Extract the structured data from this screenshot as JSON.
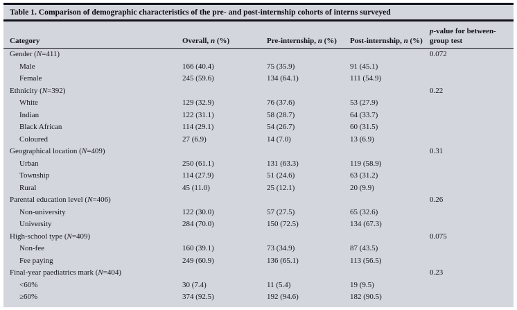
{
  "table": {
    "title": "Table 1. Comparison of demographic characteristics of the pre- and post-internship cohorts of interns surveyed",
    "columns": [
      "Category",
      "Overall, n (%)",
      "Pre-internship, n (%)",
      "Post-internship, n (%)",
      "p-value for between-group test"
    ],
    "background_color": "#d3d6dd",
    "rule_color": "#12121a",
    "rows": [
      {
        "label": "Gender (N=411)",
        "indent": false,
        "overall": "",
        "pre": "",
        "post": "",
        "p": "0.072"
      },
      {
        "label": "Male",
        "indent": true,
        "overall": "166 (40.4)",
        "pre": "75 (35.9)",
        "post": "91 (45.1)",
        "p": ""
      },
      {
        "label": "Female",
        "indent": true,
        "overall": "245 (59.6)",
        "pre": "134 (64.1)",
        "post": "111 (54.9)",
        "p": ""
      },
      {
        "label": "Ethnicity (N=392)",
        "indent": false,
        "overall": "",
        "pre": "",
        "post": "",
        "p": "0.22"
      },
      {
        "label": "White",
        "indent": true,
        "overall": "129 (32.9)",
        "pre": "76 (37.6)",
        "post": "53 (27.9)",
        "p": ""
      },
      {
        "label": "Indian",
        "indent": true,
        "overall": "122 (31.1)",
        "pre": "58 (28.7)",
        "post": "64 (33.7)",
        "p": ""
      },
      {
        "label": "Black African",
        "indent": true,
        "overall": "114 (29.1)",
        "pre": "54 (26.7)",
        "post": "60 (31.5)",
        "p": ""
      },
      {
        "label": "Coloured",
        "indent": true,
        "overall": "27 (6.9)",
        "pre": "14 (7.0)",
        "post": "13 (6.9)",
        "p": ""
      },
      {
        "label": "Geographical location (N=409)",
        "indent": false,
        "overall": "",
        "pre": "",
        "post": "",
        "p": "0.31"
      },
      {
        "label": "Urban",
        "indent": true,
        "overall": "250 (61.1)",
        "pre": "131 (63.3)",
        "post": "119 (58.9)",
        "p": ""
      },
      {
        "label": "Township",
        "indent": true,
        "overall": "114 (27.9)",
        "pre": "51 (24.6)",
        "post": "63 (31.2)",
        "p": ""
      },
      {
        "label": "Rural",
        "indent": true,
        "overall": "45 (11.0)",
        "pre": "25 (12.1)",
        "post": "20 (9.9)",
        "p": ""
      },
      {
        "label": "Parental education level (N=406)",
        "indent": false,
        "overall": "",
        "pre": "",
        "post": "",
        "p": "0.26"
      },
      {
        "label": "Non-university",
        "indent": true,
        "overall": "122 (30.0)",
        "pre": "57 (27.5)",
        "post": "65 (32.6)",
        "p": ""
      },
      {
        "label": "University",
        "indent": true,
        "overall": "284 (70.0)",
        "pre": "150 (72.5)",
        "post": "134 (67.3)",
        "p": ""
      },
      {
        "label": "High-school type (N=409)",
        "indent": false,
        "overall": "",
        "pre": "",
        "post": "",
        "p": "0.075"
      },
      {
        "label": "Non-fee",
        "indent": true,
        "overall": "160 (39.1)",
        "pre": "73 (34.9)",
        "post": "87 (43.5)",
        "p": ""
      },
      {
        "label": "Fee paying",
        "indent": true,
        "overall": "249 (60.9)",
        "pre": "136 (65.1)",
        "post": "113 (56.5)",
        "p": ""
      },
      {
        "label": "Final-year paediatrics mark (N=404)",
        "indent": false,
        "overall": "",
        "pre": "",
        "post": "",
        "p": "0.23"
      },
      {
        "label": "<60%",
        "indent": true,
        "overall": "30 (7.4)",
        "pre": "11 (5.4)",
        "post": "19 (9.5)",
        "p": ""
      },
      {
        "label": "≥60%",
        "indent": true,
        "overall": "374 (92.5)",
        "pre": "192 (94.6)",
        "post": "182 (90.5)",
        "p": ""
      }
    ]
  }
}
